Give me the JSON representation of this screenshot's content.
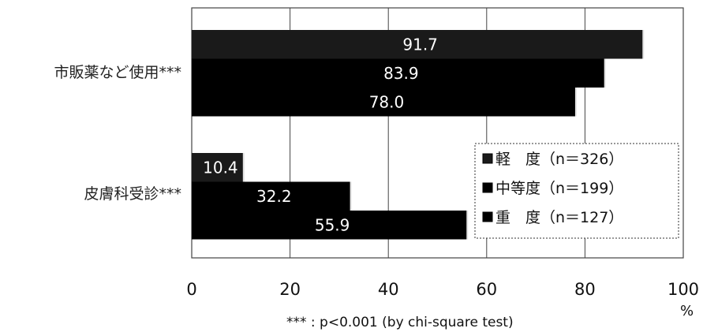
{
  "chart_data": {
    "type": "bar",
    "orientation": "horizontal",
    "categories": [
      "市販薬など使用***",
      "皮膚科受診***"
    ],
    "series": [
      {
        "name": "軽　度（n＝326）",
        "values": [
          91.7,
          10.4
        ],
        "color": "#1a1a1a"
      },
      {
        "name": "中等度（n＝199）",
        "values": [
          83.9,
          32.2
        ],
        "color": "#000000"
      },
      {
        "name": "重　度（n＝127）",
        "values": [
          78.0,
          55.9
        ],
        "color": "#000000"
      }
    ],
    "xlim": [
      0,
      100
    ],
    "xticks": [
      0,
      20,
      40,
      60,
      80,
      100
    ],
    "xunit": "%",
    "grid": true,
    "legend_position": "bottom-right",
    "note": "*** : p<0.001 (by chi-square test)"
  }
}
